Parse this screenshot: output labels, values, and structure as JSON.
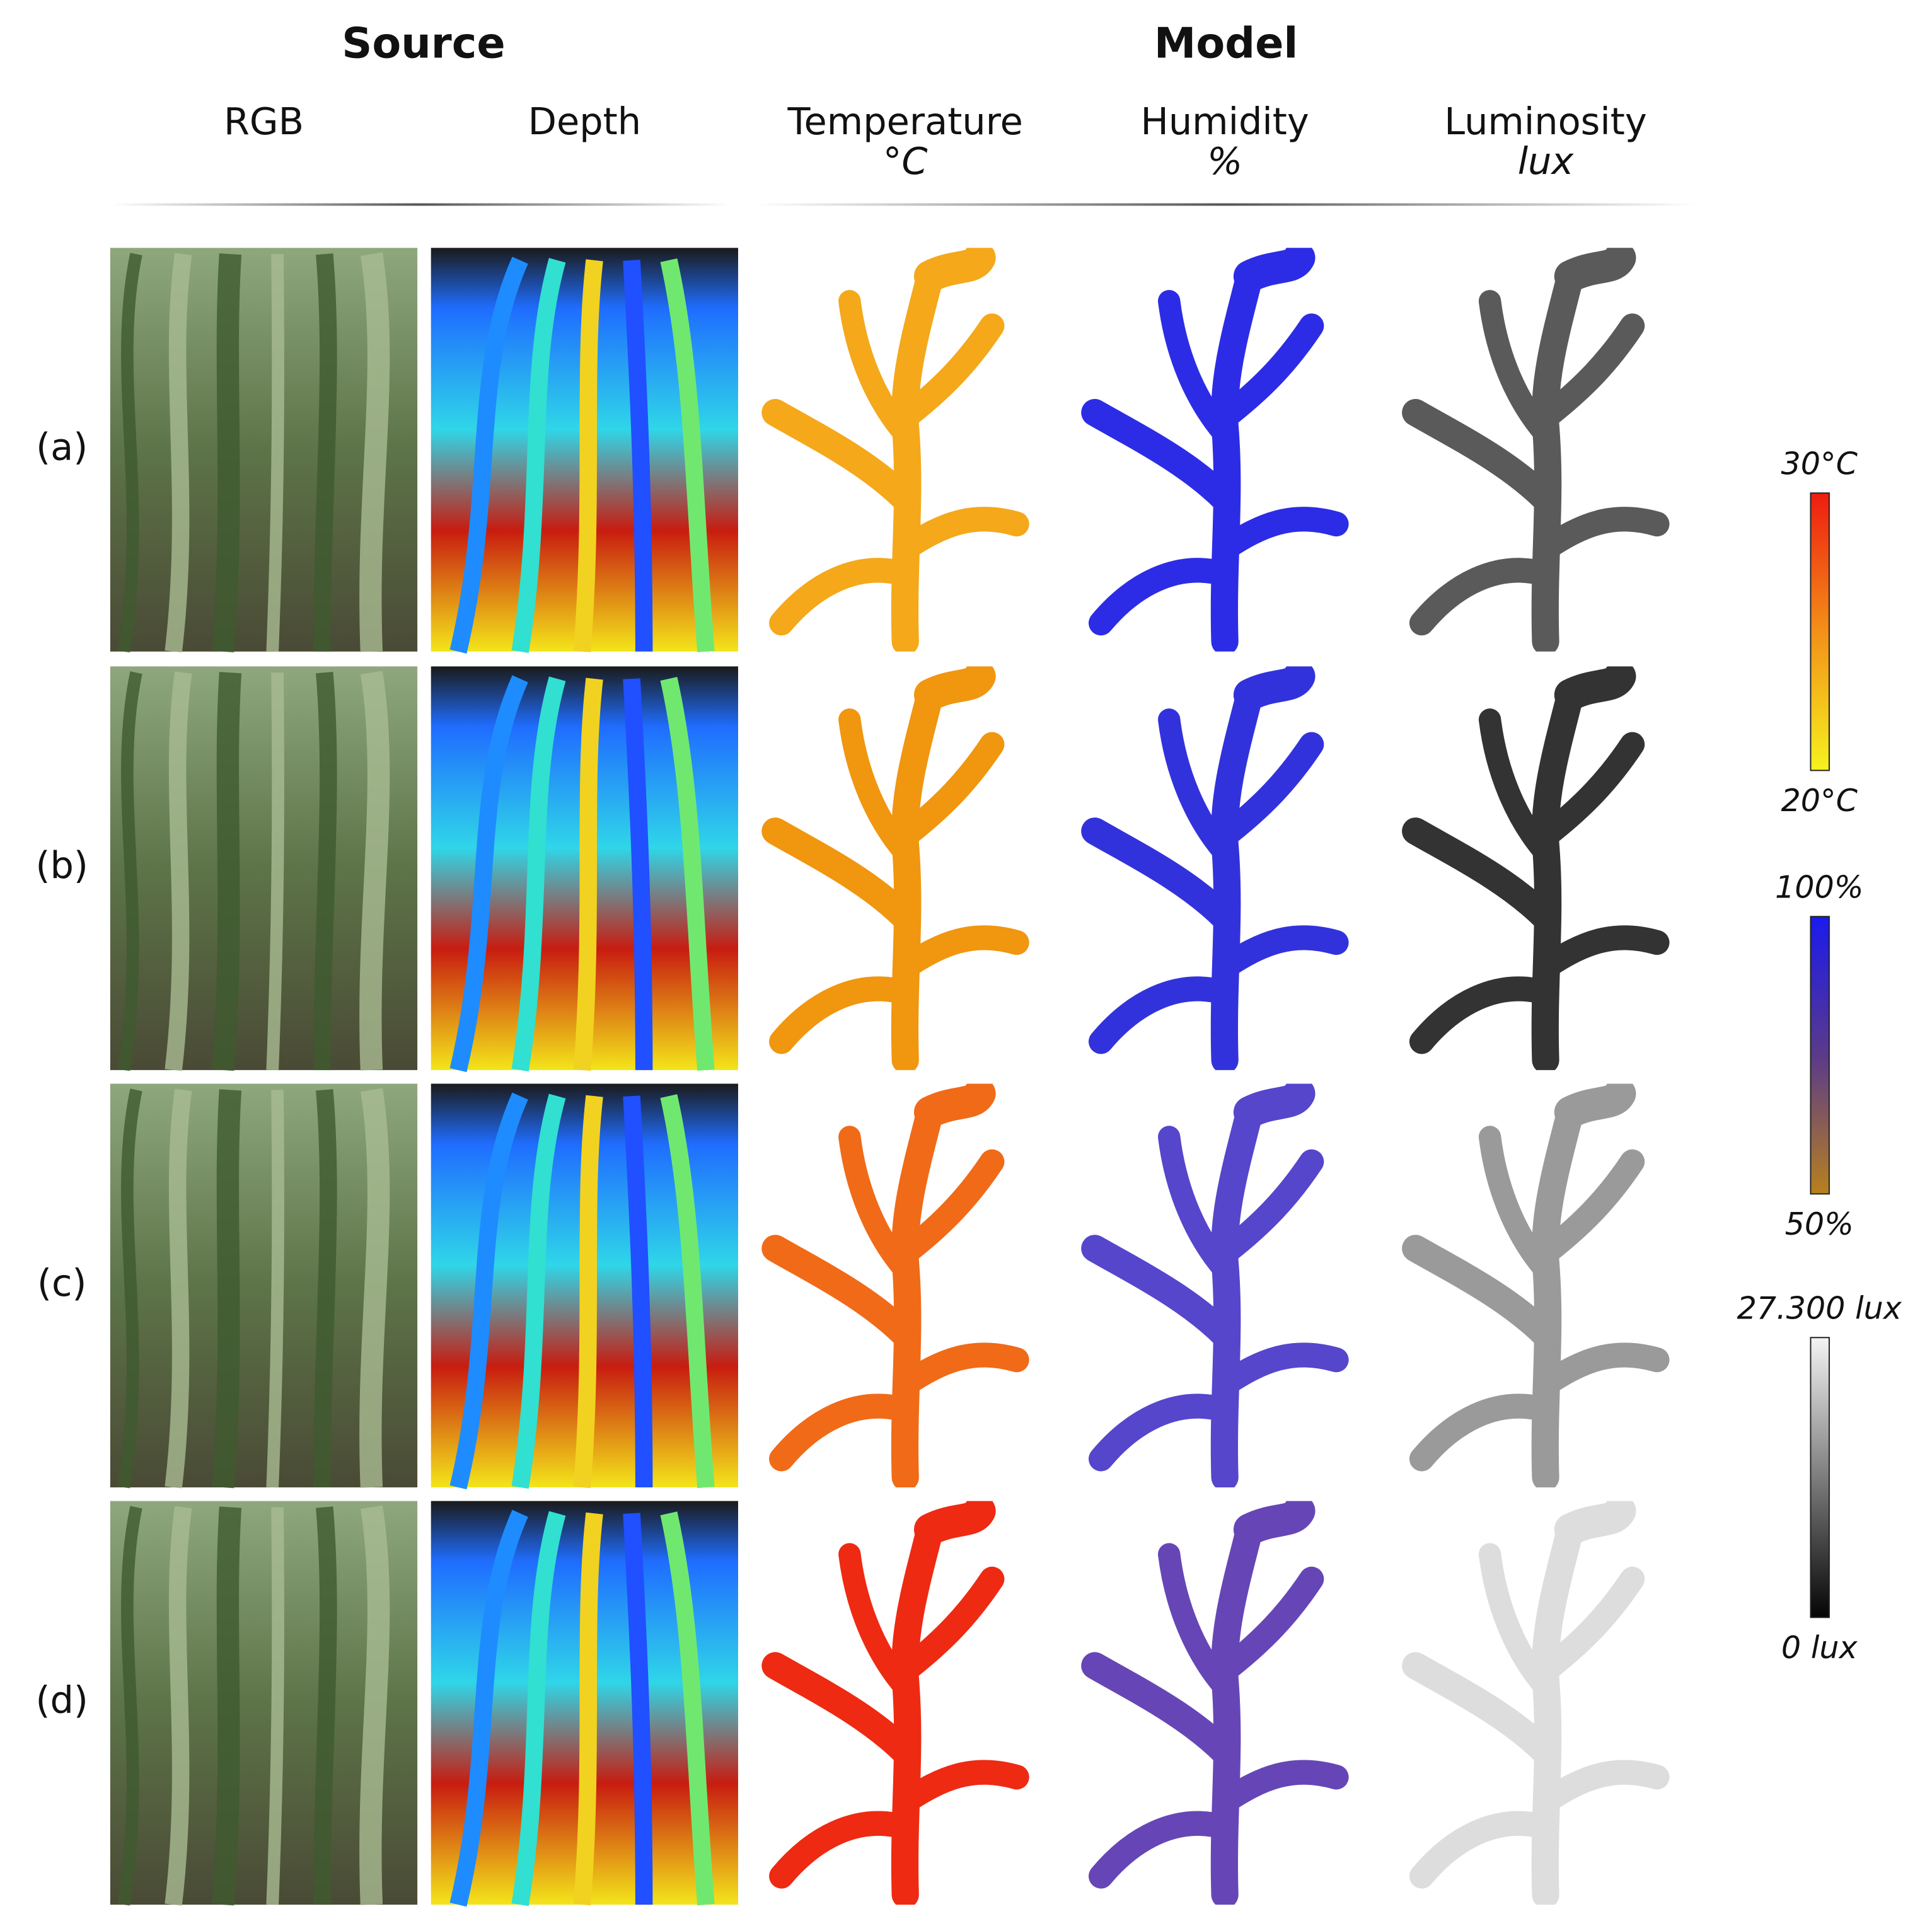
{
  "header": {
    "source": "Source",
    "model": "Model",
    "columns": [
      {
        "label": "RGB"
      },
      {
        "label": "Depth"
      },
      {
        "label": "Temperature",
        "unit": "°C"
      },
      {
        "label": "Humidity",
        "unit": "%"
      },
      {
        "label": "Luminosity",
        "unit": "lux"
      }
    ]
  },
  "rows": [
    "(a)",
    "(b)",
    "(c)",
    "(d)"
  ],
  "colorbars": [
    {
      "top": "30°C",
      "bottom": "20°C"
    },
    {
      "top": "100%",
      "bottom": "50%"
    },
    {
      "top": "27.300 lux",
      "bottom": "0 lux"
    }
  ]
}
